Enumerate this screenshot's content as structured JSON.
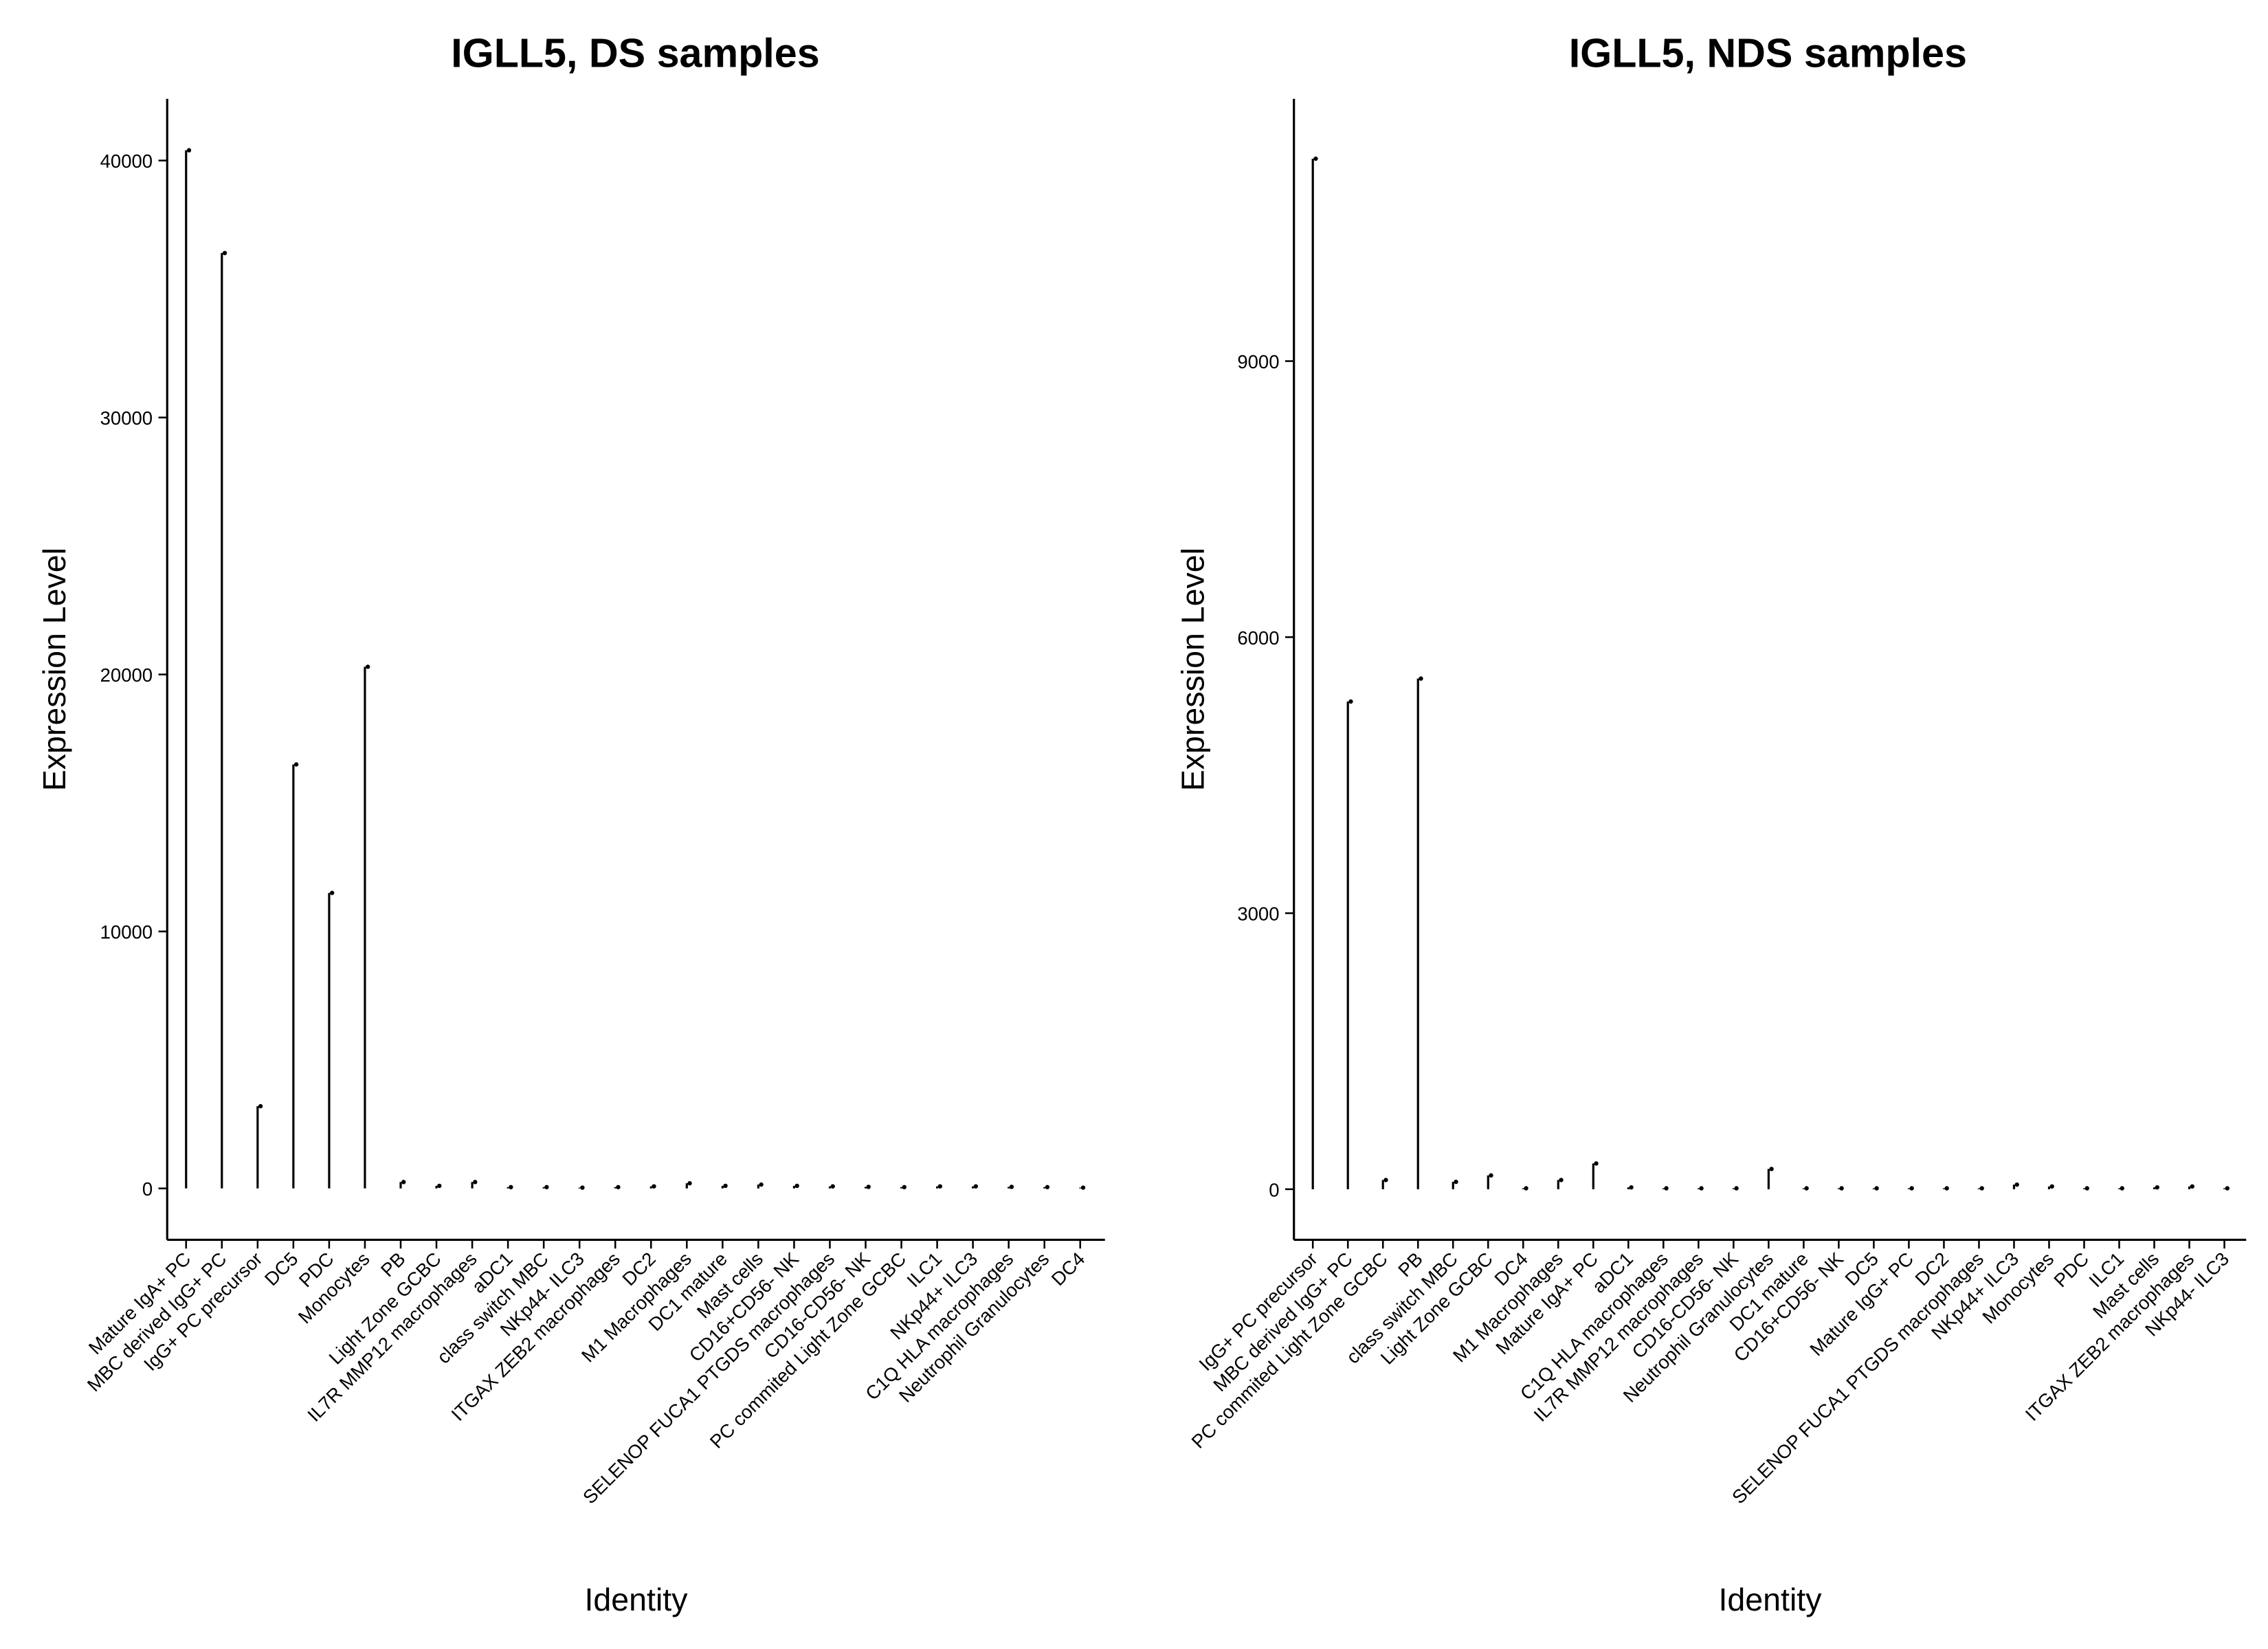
{
  "chart_data": [
    {
      "type": "violin",
      "title": "IGLL5, DS samples",
      "x_label": "Identity",
      "y_label": "Expression Level",
      "categories": [
        "Mature IgA+ PC",
        "MBC derived IgG+ PC",
        "IgG+ PC precursor",
        "DC5",
        "PDC",
        "Monocytes",
        "PB",
        "Light Zone GCBC",
        "IL7R MMP12 macrophages",
        "aDC1",
        "class switch MBC",
        "NKp44- ILC3",
        "ITGAX ZEB2 macrophages",
        "DC2",
        "M1 Macrophages",
        "DC1 mature",
        "Mast cells",
        "CD16+CD56- NK",
        "SELENOP FUCA1 PTGDS macrophages",
        "CD16-CD56- NK",
        "PC commited Light Zone GCBC",
        "ILC1",
        "NKp44+ ILC3",
        "C1Q HLA macrophages",
        "Neutrophil Granulocytes",
        "DC4"
      ],
      "values": [
        40400,
        36400,
        3200,
        16500,
        11500,
        20300,
        250,
        100,
        250,
        50,
        50,
        30,
        50,
        80,
        200,
        100,
        150,
        100,
        80,
        60,
        50,
        80,
        80,
        60,
        50,
        30
      ],
      "color": "#000000",
      "ylim": [
        -2000,
        42400
      ],
      "yticks": [
        0,
        10000,
        20000,
        30000,
        40000
      ]
    },
    {
      "type": "violin",
      "title": "IGLL5, NDS samples",
      "x_label": "Identity",
      "y_label": "Expression Level",
      "categories": [
        "IgG+ PC precursor",
        "MBC derived IgG+ PC",
        "PC commited Light Zone GCBC",
        "PB",
        "class switch MBC",
        "Light Zone GCBC",
        "DC4",
        "M1 Macrophages",
        "Mature IgA+ PC",
        "aDC1",
        "C1Q HLA macrophages",
        "IL7R MMP12 macrophages",
        "CD16-CD56- NK",
        "Neutrophil Granulocytes",
        "DC1 mature",
        "CD16+CD56- NK",
        "DC5",
        "Mature IgG+ PC",
        "DC2",
        "SELENOP FUCA1 PTGDS macrophages",
        "NKp44+ ILC3",
        "Monocytes",
        "PDC",
        "ILC1",
        "Mast cells",
        "ITGAX ZEB2 macrophages",
        "NKp44- ILC3"
      ],
      "values": [
        11200,
        5300,
        100,
        5550,
        80,
        150,
        10,
        100,
        280,
        20,
        10,
        10,
        10,
        220,
        10,
        10,
        10,
        10,
        10,
        10,
        50,
        30,
        10,
        10,
        20,
        30,
        10
      ],
      "color": "#000000",
      "ylim": [
        -550,
        11850
      ],
      "yticks": [
        0,
        3000,
        6000,
        9000
      ]
    }
  ]
}
